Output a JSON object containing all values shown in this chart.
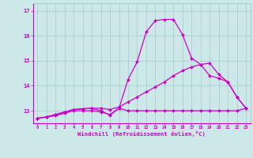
{
  "x": [
    0,
    1,
    2,
    3,
    4,
    5,
    6,
    7,
    8,
    9,
    10,
    11,
    12,
    13,
    14,
    15,
    16,
    17,
    18,
    19,
    20,
    21,
    22,
    23
  ],
  "line1": [
    12.7,
    12.75,
    12.8,
    12.9,
    13.0,
    13.0,
    13.0,
    12.95,
    12.85,
    13.1,
    13.0,
    13.0,
    13.0,
    13.0,
    13.0,
    13.0,
    13.0,
    13.0,
    13.0,
    13.0,
    13.0,
    13.0,
    13.0,
    13.1
  ],
  "line2": [
    12.7,
    12.75,
    12.85,
    12.95,
    13.05,
    13.08,
    13.1,
    13.1,
    13.05,
    13.15,
    13.35,
    13.55,
    13.75,
    13.95,
    14.15,
    14.4,
    14.6,
    14.75,
    14.85,
    14.9,
    14.45,
    14.15,
    13.55,
    13.1
  ],
  "line3": [
    12.7,
    12.75,
    12.85,
    12.95,
    13.05,
    13.08,
    13.1,
    13.0,
    12.82,
    13.1,
    14.25,
    14.95,
    16.15,
    16.6,
    16.65,
    16.65,
    16.05,
    15.1,
    14.85,
    14.4,
    14.3,
    14.15,
    13.55,
    13.1
  ],
  "line_color": "#cc00cc",
  "bg_color": "#cce8e8",
  "grid_color": "#aacece",
  "xlabel": "Windchill (Refroidissement éolien,°C)",
  "ylim": [
    12.5,
    17.3
  ],
  "xlim": [
    -0.5,
    23.5
  ],
  "yticks": [
    13,
    14,
    15,
    16,
    17
  ],
  "xticks": [
    0,
    1,
    2,
    3,
    4,
    5,
    6,
    7,
    8,
    9,
    10,
    11,
    12,
    13,
    14,
    15,
    16,
    17,
    18,
    19,
    20,
    21,
    22,
    23
  ],
  "marker_size": 2.0,
  "line_width": 0.9
}
